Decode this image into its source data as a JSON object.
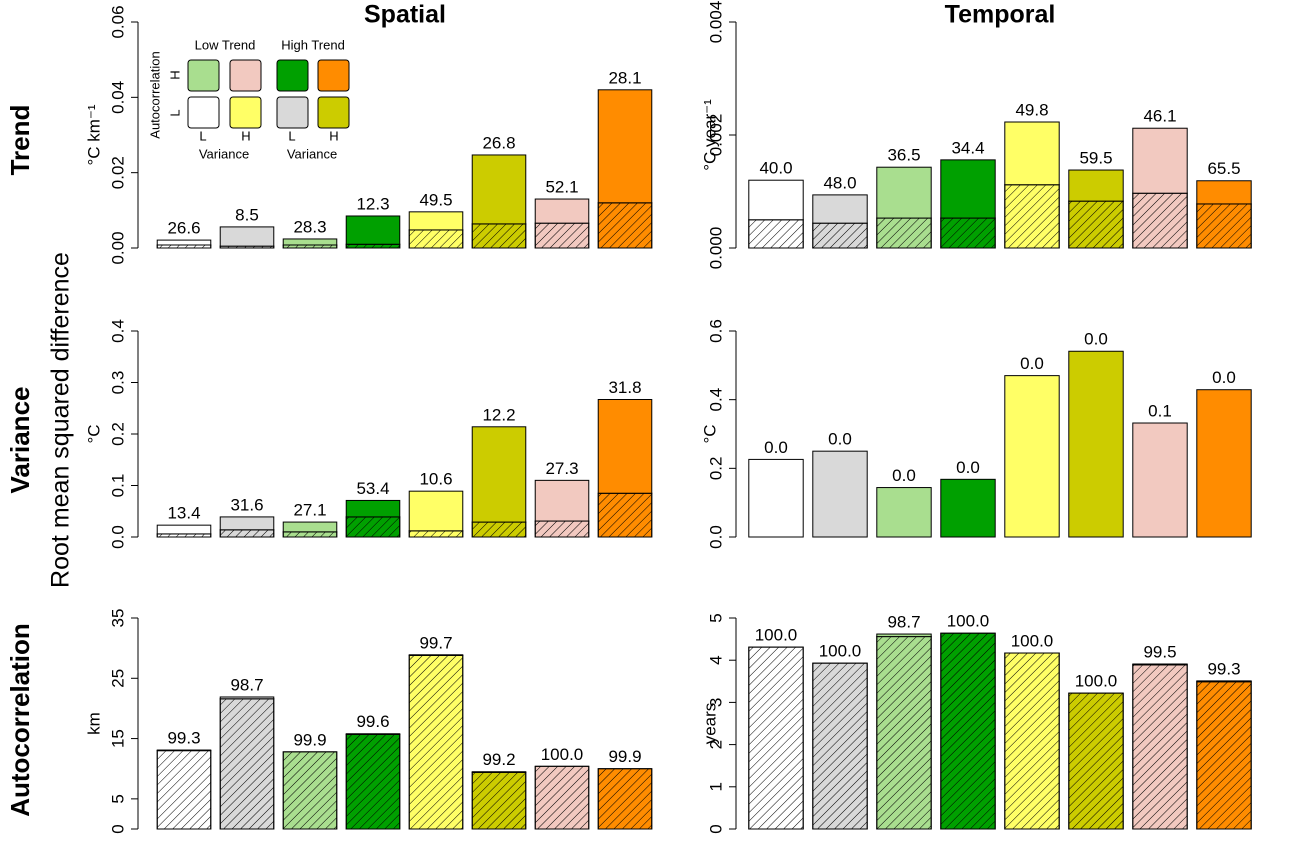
{
  "column_titles": [
    "Spatial",
    "Temporal"
  ],
  "row_titles": [
    "Trend",
    "Variance",
    "Autocorrelation"
  ],
  "shared_ylabel": "Root mean squared difference",
  "legend": {
    "low_trend": "Low Trend",
    "high_trend": "High Trend",
    "autocorrelation": "Autocorrelation",
    "high": "H",
    "low": "L",
    "variance": "Variance"
  },
  "chart_data": [
    {
      "type": "bar",
      "ylabel": "°C km⁻¹",
      "colors": [
        "#ffffff",
        "#d9d9d9",
        "#a9de8f",
        "#00a000",
        "#ffff66",
        "#cccc00",
        "#f2c9c0",
        "#ff8c00"
      ],
      "ylim": [
        0,
        0.06
      ],
      "yticks": [
        {
          "value": 0,
          "label": "0.00"
        },
        {
          "value": 0.02,
          "label": "0.02"
        },
        {
          "value": 0.04,
          "label": "0.04"
        },
        {
          "value": 0.06,
          "label": "0.06"
        }
      ],
      "series": [
        {
          "hatch": true,
          "values": [
            0.0008,
            0.0005,
            0.0008,
            0.001,
            0.0048,
            0.0064,
            0.0066,
            0.012
          ]
        },
        {
          "hatch": false,
          "values": [
            0.0013,
            0.0051,
            0.0016,
            0.0075,
            0.0048,
            0.0183,
            0.0064,
            0.03
          ]
        }
      ],
      "bar_labels": [
        "26.6",
        "8.5",
        "28.3",
        "12.3",
        "49.5",
        "26.8",
        "52.1",
        "28.1"
      ]
    },
    {
      "type": "bar",
      "ylabel": "°C year⁻¹",
      "colors": [
        "#ffffff",
        "#d9d9d9",
        "#a9de8f",
        "#00a000",
        "#ffff66",
        "#cccc00",
        "#f2c9c0",
        "#ff8c00"
      ],
      "ylim": [
        0,
        0.004
      ],
      "yticks": [
        {
          "value": 0,
          "label": "0.000"
        },
        {
          "value": 0.002,
          "label": "0.002"
        },
        {
          "value": 0.004,
          "label": "0.004"
        }
      ],
      "series": [
        {
          "hatch": true,
          "values": [
            0.0005,
            0.00044,
            0.00053,
            0.00053,
            0.00112,
            0.00083,
            0.00097,
            0.00078
          ]
        },
        {
          "hatch": false,
          "values": [
            0.0007,
            0.0005,
            0.0009,
            0.00103,
            0.00111,
            0.00055,
            0.00115,
            0.00041
          ]
        }
      ],
      "bar_labels": [
        "40.0",
        "48.0",
        "36.5",
        "34.4",
        "49.8",
        "59.5",
        "46.1",
        "65.5"
      ]
    },
    {
      "type": "bar",
      "ylabel": "°C",
      "colors": [
        "#ffffff",
        "#d9d9d9",
        "#a9de8f",
        "#00a000",
        "#ffff66",
        "#cccc00",
        "#f2c9c0",
        "#ff8c00"
      ],
      "ylim": [
        0,
        0.4
      ],
      "yticks": [
        {
          "value": 0,
          "label": "0.0"
        },
        {
          "value": 0.1,
          "label": "0.1"
        },
        {
          "value": 0.2,
          "label": "0.2"
        },
        {
          "value": 0.3,
          "label": "0.3"
        },
        {
          "value": 0.4,
          "label": "0.4"
        }
      ],
      "series": [
        {
          "hatch": true,
          "values": [
            0.006,
            0.014,
            0.01,
            0.039,
            0.012,
            0.029,
            0.031,
            0.085
          ]
        },
        {
          "hatch": false,
          "values": [
            0.017,
            0.025,
            0.019,
            0.032,
            0.077,
            0.185,
            0.079,
            0.182
          ]
        }
      ],
      "bar_labels": [
        "13.4",
        "31.6",
        "27.1",
        "53.4",
        "10.6",
        "12.2",
        "27.3",
        "31.8"
      ]
    },
    {
      "type": "bar",
      "ylabel": "°C",
      "colors": [
        "#ffffff",
        "#d9d9d9",
        "#a9de8f",
        "#00a000",
        "#ffff66",
        "#cccc00",
        "#f2c9c0",
        "#ff8c00"
      ],
      "ylim": [
        0,
        0.6
      ],
      "yticks": [
        {
          "value": 0,
          "label": "0.0"
        },
        {
          "value": 0.2,
          "label": "0.2"
        },
        {
          "value": 0.4,
          "label": "0.4"
        },
        {
          "value": 0.6,
          "label": "0.6"
        }
      ],
      "series": [
        {
          "hatch": false,
          "values": [
            0.226,
            0.25,
            0.144,
            0.168,
            0.47,
            0.541,
            0.332,
            0.429
          ]
        }
      ],
      "bar_labels": [
        "0.0",
        "0.0",
        "0.0",
        "0.0",
        "0.0",
        "0.0",
        "0.1",
        "0.0"
      ]
    },
    {
      "type": "bar",
      "ylabel": "km",
      "colors": [
        "#ffffff",
        "#d9d9d9",
        "#a9de8f",
        "#00a000",
        "#ffff66",
        "#cccc00",
        "#f2c9c0",
        "#ff8c00"
      ],
      "ylim": [
        0,
        35
      ],
      "yticks": [
        0,
        5,
        15,
        25,
        35
      ],
      "series": [
        {
          "hatch": true,
          "values": [
            13.0,
            21.6,
            12.8,
            15.7,
            28.8,
            9.4,
            10.4,
            10.0
          ]
        },
        {
          "hatch": false,
          "values": [
            0.1,
            0.3,
            0,
            0.1,
            0.1,
            0.1,
            0,
            0
          ]
        }
      ],
      "bar_labels": [
        "99.3",
        "98.7",
        "99.9",
        "99.6",
        "99.7",
        "99.2",
        "100.0",
        "99.9"
      ]
    },
    {
      "type": "bar",
      "ylabel": "years",
      "colors": [
        "#ffffff",
        "#d9d9d9",
        "#a9de8f",
        "#00a000",
        "#ffff66",
        "#cccc00",
        "#f2c9c0",
        "#ff8c00"
      ],
      "ylim": [
        0,
        5
      ],
      "yticks": [
        0,
        1,
        2,
        3,
        4,
        5
      ],
      "series": [
        {
          "hatch": true,
          "values": [
            4.31,
            3.93,
            4.56,
            4.64,
            4.17,
            3.22,
            3.89,
            3.49
          ]
        },
        {
          "hatch": false,
          "values": [
            0,
            0,
            0.06,
            0,
            0,
            0,
            0.02,
            0.02
          ]
        }
      ],
      "bar_labels": [
        "100.0",
        "100.0",
        "98.7",
        "100.0",
        "100.0",
        "100.0",
        "99.5",
        "99.3"
      ]
    }
  ]
}
